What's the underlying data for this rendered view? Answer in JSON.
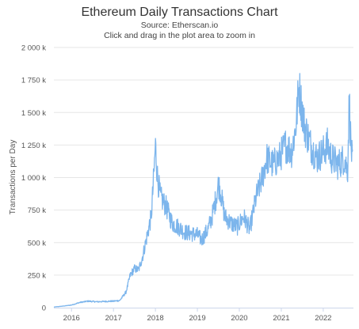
{
  "chart_data": {
    "type": "line",
    "title": "Ethereum Daily Transactions Chart",
    "subtitle_source": "Source: Etherscan.io",
    "subtitle_hint": "Click and drag in the plot area to zoom in",
    "xlabel": "",
    "ylabel": "Transactions per Day",
    "xlim": [
      2015.58,
      2022.72
    ],
    "ylim": [
      0,
      2000000
    ],
    "x_tick_labels": [
      "2016",
      "2017",
      "2018",
      "2019",
      "2020",
      "2021",
      "2022"
    ],
    "x_tick_values": [
      2016,
      2017,
      2018,
      2019,
      2020,
      2021,
      2022
    ],
    "y_tick_labels": [
      "0",
      "250 k",
      "500 k",
      "750 k",
      "1 000 k",
      "1 250 k",
      "1 500 k",
      "1 750 k",
      "2 000 k"
    ],
    "y_tick_values": [
      0,
      250000,
      500000,
      750000,
      1000000,
      1250000,
      1500000,
      1750000,
      2000000
    ],
    "grid": "horizontal",
    "legend": "none",
    "series_color": "#7cb5ec",
    "series": [
      {
        "name": "",
        "x": [
          2015.58,
          2015.75,
          2016.0,
          2016.2,
          2016.4,
          2016.6,
          2016.8,
          2017.0,
          2017.15,
          2017.3,
          2017.4,
          2017.5,
          2017.6,
          2017.7,
          2017.8,
          2017.9,
          2017.96,
          2018.0,
          2018.05,
          2018.12,
          2018.25,
          2018.4,
          2018.55,
          2018.7,
          2018.85,
          2019.0,
          2019.1,
          2019.25,
          2019.35,
          2019.45,
          2019.5,
          2019.55,
          2019.65,
          2019.8,
          2019.95,
          2020.1,
          2020.25,
          2020.4,
          2020.55,
          2020.65,
          2020.8,
          2020.95,
          2021.1,
          2021.25,
          2021.35,
          2021.42,
          2021.55,
          2021.7,
          2021.85,
          2022.0,
          2022.1,
          2022.2,
          2022.35,
          2022.5,
          2022.58,
          2022.62,
          2022.66,
          2022.7
        ],
        "y": [
          5000,
          10000,
          20000,
          40000,
          50000,
          45000,
          48000,
          50000,
          55000,
          120000,
          250000,
          300000,
          290000,
          400000,
          550000,
          700000,
          1000000,
          1250000,
          1000000,
          850000,
          780000,
          650000,
          620000,
          580000,
          570000,
          560000,
          520000,
          600000,
          700000,
          850000,
          950000,
          900000,
          700000,
          650000,
          620000,
          700000,
          600000,
          850000,
          1000000,
          1150000,
          1100000,
          1150000,
          1250000,
          1200000,
          1400000,
          1700000,
          1400000,
          1250000,
          1150000,
          1200000,
          1250000,
          1150000,
          1100000,
          1150000,
          1050000,
          1600000,
          1250000,
          1100000
        ]
      }
    ]
  }
}
